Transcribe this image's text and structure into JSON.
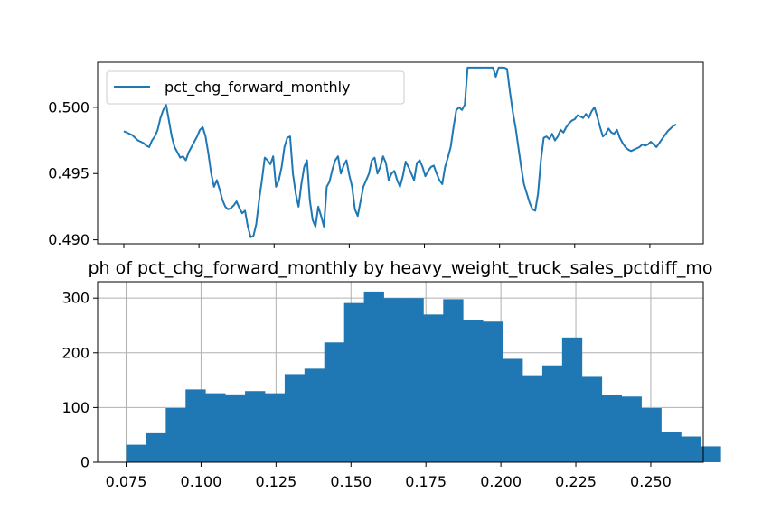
{
  "chart_data": [
    {
      "type": "line",
      "title": "",
      "xlabel": "",
      "ylabel": "",
      "ylim": [
        0.4897,
        0.5034
      ],
      "y_ticks": [
        "0.490",
        "0.495",
        "0.500"
      ],
      "y_tick_values": [
        0.49,
        0.495,
        0.5
      ],
      "x_tick_count": 8,
      "grid": false,
      "legend_position": "upper-left",
      "series": [
        {
          "name": "pct_chg_forward_monthly",
          "color": "#1f77b4",
          "x_range": [
            0,
            1000
          ],
          "y": [
            0.4982,
            0.4981,
            0.498,
            0.4979,
            0.4977,
            0.4975,
            0.4974,
            0.4973,
            0.4971,
            0.497,
            0.4975,
            0.4978,
            0.4983,
            0.4992,
            0.4998,
            0.5002,
            0.499,
            0.4978,
            0.497,
            0.4966,
            0.4962,
            0.4963,
            0.496,
            0.4966,
            0.497,
            0.4974,
            0.4978,
            0.4983,
            0.4985,
            0.4978,
            0.4965,
            0.495,
            0.494,
            0.4945,
            0.4938,
            0.493,
            0.4925,
            0.4923,
            0.4924,
            0.4926,
            0.4929,
            0.4924,
            0.492,
            0.4922,
            0.491,
            0.4902,
            0.4903,
            0.4912,
            0.493,
            0.4945,
            0.4962,
            0.496,
            0.4957,
            0.4963,
            0.494,
            0.4945,
            0.4955,
            0.497,
            0.4977,
            0.4978,
            0.495,
            0.4935,
            0.4925,
            0.4942,
            0.4955,
            0.496,
            0.493,
            0.4915,
            0.491,
            0.4925,
            0.4918,
            0.491,
            0.494,
            0.4944,
            0.4953,
            0.496,
            0.4963,
            0.495,
            0.4956,
            0.496,
            0.4949,
            0.494,
            0.4923,
            0.4918,
            0.4929,
            0.494,
            0.4945,
            0.495,
            0.496,
            0.4962,
            0.495,
            0.4955,
            0.4963,
            0.4958,
            0.4945,
            0.495,
            0.4952,
            0.4945,
            0.494,
            0.4948,
            0.4959,
            0.4955,
            0.495,
            0.4945,
            0.4958,
            0.496,
            0.4955,
            0.4948,
            0.4952,
            0.4955,
            0.4956,
            0.495,
            0.4945,
            0.4942,
            0.4955,
            0.4962,
            0.497,
            0.4985,
            0.4998,
            0.5,
            0.4998,
            0.5002,
            0.503,
            0.503,
            0.503,
            0.503,
            0.503,
            0.503,
            0.503,
            0.503,
            0.503,
            0.503,
            0.5023,
            0.503,
            0.503,
            0.503,
            0.5029,
            0.5012,
            0.4997,
            0.4985,
            0.497,
            0.4955,
            0.4942,
            0.4935,
            0.4928,
            0.4923,
            0.4922,
            0.4935,
            0.496,
            0.4977,
            0.4978,
            0.4976,
            0.498,
            0.4975,
            0.4978,
            0.4983,
            0.4981,
            0.4985,
            0.4988,
            0.499,
            0.4991,
            0.4994,
            0.4993,
            0.4992,
            0.4995,
            0.4992,
            0.4997,
            0.5,
            0.4993,
            0.4985,
            0.4978,
            0.498,
            0.4984,
            0.4981,
            0.498,
            0.4983,
            0.4977,
            0.4973,
            0.497,
            0.4968,
            0.4967,
            0.4968,
            0.4969,
            0.497,
            0.4972,
            0.4971,
            0.4972,
            0.4974,
            0.4972,
            0.497,
            0.4973,
            0.4976,
            0.4979,
            0.4982,
            0.4984,
            0.4986,
            0.4987
          ]
        }
      ]
    },
    {
      "type": "bar",
      "title": "ph of pct_chg_forward_monthly by heavy_weight_truck_sales_pctdiff_mo",
      "xlabel": "",
      "ylabel": "",
      "xlim": [
        0.0655,
        0.2675
      ],
      "ylim": [
        0,
        330
      ],
      "x_ticks": [
        "0.075",
        "0.100",
        "0.125",
        "0.150",
        "0.175",
        "0.200",
        "0.225",
        "0.250"
      ],
      "x_tick_values": [
        0.075,
        0.1,
        0.125,
        0.15,
        0.175,
        0.2,
        0.225,
        0.25
      ],
      "y_ticks": [
        "0",
        "100",
        "200",
        "300"
      ],
      "y_tick_values": [
        0,
        100,
        200,
        300
      ],
      "grid": true,
      "color": "#1f77b4",
      "bin_start": 0.075,
      "bin_width": 0.00661,
      "values": [
        32,
        53,
        99,
        133,
        126,
        124,
        130,
        126,
        161,
        171,
        219,
        291,
        312,
        300,
        300,
        270,
        298,
        260,
        257,
        189,
        159,
        177,
        228,
        156,
        123,
        120,
        99,
        55,
        47,
        29
      ]
    }
  ]
}
